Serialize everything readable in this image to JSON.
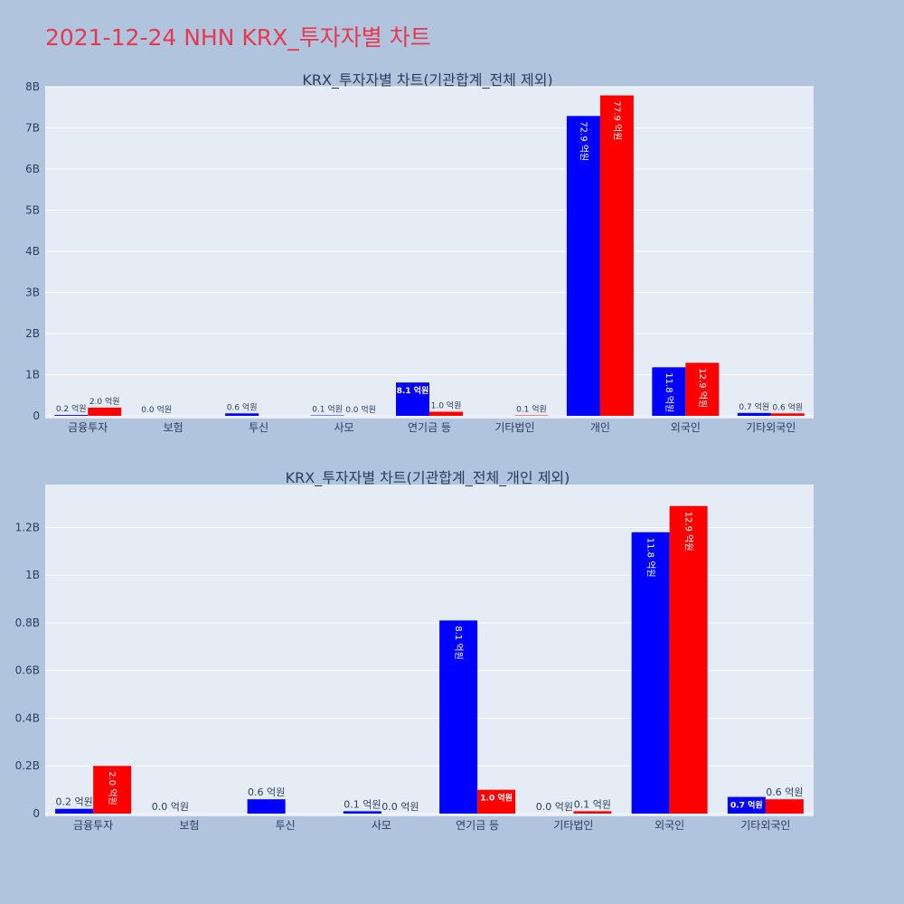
{
  "title": "2021-12-24 NHN KRX_투자자별 차트",
  "colors": {
    "page_bg": "#b0c4de",
    "plot_bg": "#e5ecf6",
    "buy": "#0000ff",
    "sell": "#ff0000",
    "title": "#e8384f"
  },
  "chart_data": [
    {
      "type": "bar",
      "title": "KRX_투자자별 차트(기관합계_전체 제외)",
      "categories": [
        "금융투자",
        "보험",
        "투신",
        "사모",
        "연기금 등",
        "기타법인",
        "개인",
        "외국인",
        "기타외국인"
      ],
      "ylim": [
        0,
        8000000000
      ],
      "yticks": [
        0,
        1000000000,
        2000000000,
        3000000000,
        4000000000,
        5000000000,
        6000000000,
        7000000000,
        8000000000
      ],
      "ytick_labels": [
        "0",
        "1B",
        "2B",
        "3B",
        "4B",
        "5B",
        "6B",
        "7B",
        "8B"
      ],
      "grid": true,
      "series": [
        {
          "color": "#0000ff",
          "values": [
            20000000,
            0,
            60000000,
            10000000,
            810000000,
            0,
            7290000000,
            1180000000,
            70000000
          ],
          "labels": [
            "0.2 억원",
            "0.0 억원",
            "0.6 억원",
            "0.1 억원",
            "8.1 억원",
            "",
            "72.9 억원",
            "11.8 억원",
            "0.7 억원"
          ]
        },
        {
          "color": "#ff0000",
          "values": [
            200000000,
            0,
            0,
            0,
            100000000,
            10000000,
            7790000000,
            1290000000,
            60000000
          ],
          "labels": [
            "2.0 억원",
            "",
            "",
            "0.0 억원",
            "1.0 억원",
            "0.1 억원",
            "77.9 억원",
            "12.9 억원",
            "0.6 억원"
          ]
        }
      ]
    },
    {
      "type": "bar",
      "title": "KRX_투자자별 차트(기관합계_전체_개인 제외)",
      "categories": [
        "금융투자",
        "보험",
        "투신",
        "사모",
        "연기금 등",
        "기타법인",
        "외국인",
        "기타외국인"
      ],
      "ylim": [
        0,
        1380000000
      ],
      "yticks": [
        0,
        200000000,
        400000000,
        600000000,
        800000000,
        1000000000,
        1200000000
      ],
      "ytick_labels": [
        "0",
        "0.2B",
        "0.4B",
        "0.6B",
        "0.8B",
        "1B",
        "1.2B"
      ],
      "grid": true,
      "series": [
        {
          "color": "#0000ff",
          "values": [
            20000000,
            0,
            60000000,
            10000000,
            810000000,
            0,
            1180000000,
            70000000
          ],
          "labels": [
            "0.2 억원",
            "0.0 억원",
            "0.6 억원",
            "0.1 억원",
            "8.1 억원",
            "0.0 억원",
            "11.8 억원",
            "0.7 억원"
          ]
        },
        {
          "color": "#ff0000",
          "values": [
            200000000,
            0,
            0,
            0,
            100000000,
            10000000,
            1290000000,
            60000000
          ],
          "labels": [
            "2.0 억원",
            "",
            "",
            "0.0 억원",
            "1.0 억원",
            "0.1 억원",
            "12.9 억원",
            "0.6 억원"
          ]
        }
      ]
    }
  ]
}
